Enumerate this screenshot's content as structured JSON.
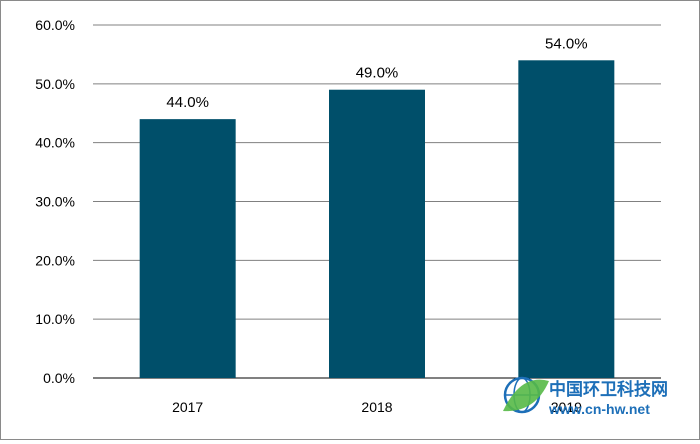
{
  "chart_data": {
    "type": "bar",
    "title": "",
    "xlabel": "",
    "ylabel": "",
    "categories": [
      "2017",
      "2018",
      "2019"
    ],
    "values": [
      44.0,
      49.0,
      54.0
    ],
    "data_labels": [
      "44.0%",
      "49.0%",
      "54.0%"
    ],
    "ylim": [
      0,
      60
    ],
    "yticks": [
      0,
      10,
      20,
      30,
      40,
      50,
      60
    ],
    "ytick_labels": [
      "0.0%",
      "10.0%",
      "20.0%",
      "30.0%",
      "40.0%",
      "50.0%",
      "60.0%"
    ],
    "grid": true,
    "legend": "none",
    "bar_color": "#004f6a"
  },
  "watermark": {
    "name": "中国环卫科技网",
    "url": "www.cn-hw.net",
    "color": "#1d6fb8",
    "accent_color": "#57b947"
  }
}
